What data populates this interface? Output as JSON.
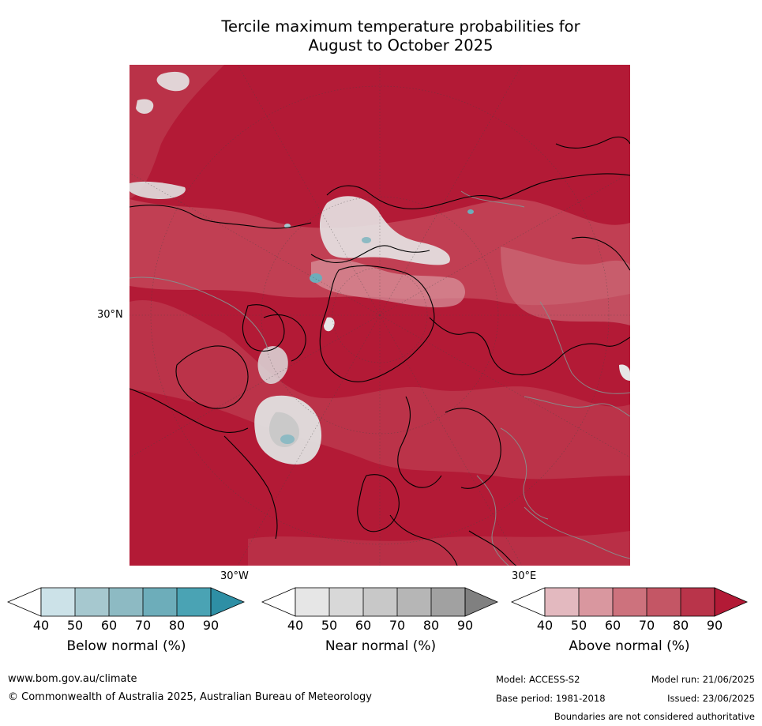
{
  "title_line1": "Tercile maximum temperature probabilities for",
  "title_line2": "August to October 2025",
  "map": {
    "projection": "north-polar-stereographic",
    "labels": {
      "lat_30n": "30°N",
      "lon_30w": "30°W",
      "lon_30e": "30°E"
    },
    "colors": {
      "dominant": "#b31a36",
      "coastline": "#000000",
      "borders": "#808080",
      "gridlines": "#444444"
    }
  },
  "colorbars": [
    {
      "title": "Below normal (%)",
      "ticks": [
        "40",
        "50",
        "60",
        "70",
        "80",
        "90"
      ],
      "colors": [
        "#ffffff",
        "#cce2e8",
        "#a6c8cf",
        "#8dbac3",
        "#6dadba",
        "#4aa3b4",
        "#2e8fa5"
      ]
    },
    {
      "title": "Near normal (%)",
      "ticks": [
        "40",
        "50",
        "60",
        "70",
        "80",
        "90"
      ],
      "colors": [
        "#ffffff",
        "#e6e6e6",
        "#d8d8d8",
        "#c8c8c8",
        "#b6b6b6",
        "#a1a1a1",
        "#808080"
      ]
    },
    {
      "title": "Above normal (%)",
      "ticks": [
        "40",
        "50",
        "60",
        "70",
        "80",
        "90"
      ],
      "colors": [
        "#ffffff",
        "#e3b9bf",
        "#d9979f",
        "#cd727d",
        "#c45665",
        "#b9344a",
        "#b31a36"
      ]
    }
  ],
  "footer": {
    "website": "www.bom.gov.au/climate",
    "copyright": "© Commonwealth of Australia 2025, Australian Bureau of Meteorology",
    "model": "Model: ACCESS-S2",
    "model_run": "Model run: 21/06/2025",
    "base_period": "Base period: 1981-2018",
    "issued": "Issued: 23/06/2025",
    "disclaimer": "Boundaries are not considered authoritative"
  }
}
